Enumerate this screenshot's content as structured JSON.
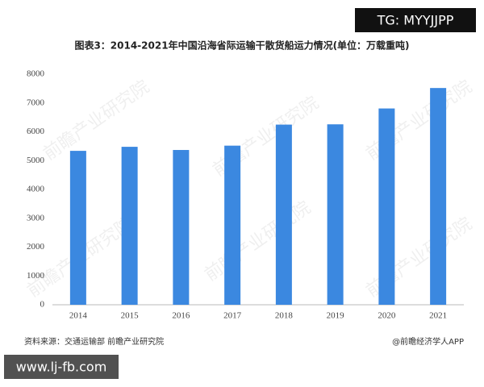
{
  "chart_data": {
    "type": "bar",
    "title": "图表3：2014-2021年中国沿海省际运输干散货船运力情况(单位：万载重吨)",
    "categories": [
      "2014",
      "2015",
      "2016",
      "2017",
      "2018",
      "2019",
      "2020",
      "2021"
    ],
    "values": [
      5340,
      5480,
      5370,
      5520,
      6250,
      6260,
      6810,
      7520
    ],
    "color": "#3b88e0",
    "ylim": [
      0,
      8000
    ],
    "yticks": [
      0,
      1000,
      2000,
      3000,
      4000,
      5000,
      6000,
      7000,
      8000
    ],
    "grid": false,
    "source": "资料来源：交通运输部 前瞻产业研究院",
    "credit": "@前瞻经济学人APP",
    "watermark": "前瞻产业研究院"
  },
  "overlay": {
    "top_right": "TG: MYYJJPP",
    "bottom_left": "www.lj-fb.com"
  }
}
